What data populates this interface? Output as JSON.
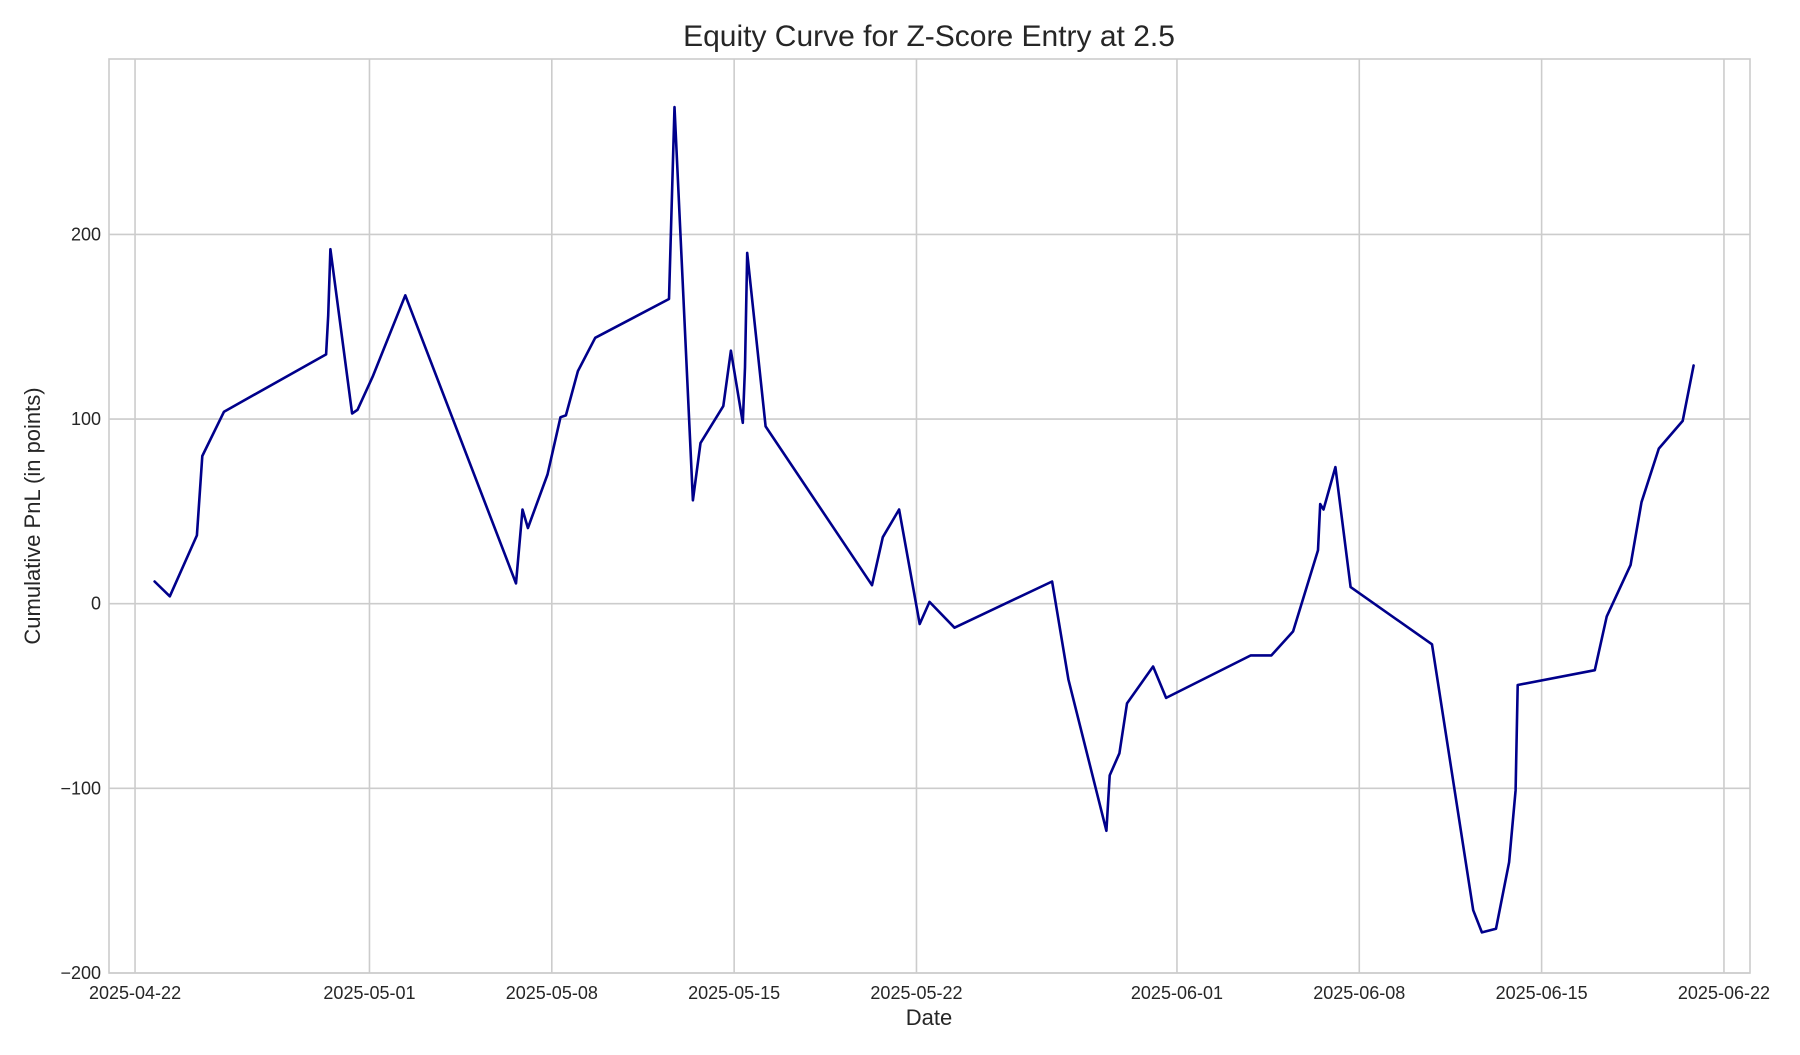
{
  "chart_data": {
    "type": "line",
    "title": "Equity Curve for Z-Score Entry at 2.5",
    "xlabel": "Date",
    "ylabel": "Cumulative PnL (in points)",
    "xlim": [
      "2025-04-21",
      "2025-06-23"
    ],
    "ylim": [
      -200,
      295
    ],
    "x_ticks": [
      "2025-04-22",
      "2025-05-01",
      "2025-05-08",
      "2025-05-15",
      "2025-05-22",
      "2025-06-01",
      "2025-06-08",
      "2025-06-15",
      "2025-06-22"
    ],
    "y_ticks": [
      -200,
      -100,
      0,
      100,
      200
    ],
    "y_tick_labels": [
      "−200",
      "−100",
      "0",
      "100",
      "200"
    ],
    "grid": true,
    "colors": {
      "line": "#00008b",
      "grid": "#cccccc",
      "background": "#ffffff"
    },
    "series": [
      {
        "x": [
          "2025-04-22T18:00",
          "2025-04-23T08:00",
          "2025-04-24T09:00",
          "2025-04-24T14:00",
          "2025-04-25T10:00",
          "2025-04-29T08:00",
          "2025-04-29T10:00",
          "2025-04-29T12:00",
          "2025-04-30T08:00",
          "2025-04-30T13:00",
          "2025-05-01T03:00",
          "2025-05-02T09:00",
          "2025-05-06T15:00",
          "2025-05-06T21:00",
          "2025-05-07T02:00",
          "2025-05-07T20:00",
          "2025-05-08T08:00",
          "2025-05-08T13:00",
          "2025-05-09T00:00",
          "2025-05-09T16:00",
          "2025-05-12T12:00",
          "2025-05-12T17:00",
          "2025-05-13T10:00",
          "2025-05-13T17:00",
          "2025-05-14T14:00",
          "2025-05-14T21:00",
          "2025-05-15T08:00",
          "2025-05-15T10:00",
          "2025-05-15T12:00",
          "2025-05-16T05:00",
          "2025-05-20T07:00",
          "2025-05-20T17:00",
          "2025-05-21T08:00",
          "2025-05-22T03:00",
          "2025-05-22T12:00",
          "2025-05-23T11:00",
          "2025-05-27T05:00",
          "2025-05-27T20:00",
          "2025-05-29T07:00",
          "2025-05-29T10:00",
          "2025-05-29T19:00",
          "2025-05-30T02:00",
          "2025-05-31T02:00",
          "2025-05-31T14:00",
          "2025-06-03T20:00",
          "2025-06-04T15:00",
          "2025-06-05T11:00",
          "2025-06-06T10:00",
          "2025-06-06T12:00",
          "2025-06-06T15:00",
          "2025-06-07T02:00",
          "2025-06-07T16:00",
          "2025-06-10T19:00",
          "2025-06-12T09:00",
          "2025-06-12T17:00",
          "2025-06-13T06:00",
          "2025-06-13T18:00",
          "2025-06-14T00:00",
          "2025-06-14T02:00",
          "2025-06-17T01:00",
          "2025-06-17T12:00",
          "2025-06-18T10:00",
          "2025-06-18T20:00",
          "2025-06-19T12:00",
          "2025-06-20T10:00",
          "2025-06-20T20:00"
        ],
        "y": [
          12,
          4,
          37,
          80,
          104,
          135,
          156,
          192,
          103,
          105,
          123,
          167,
          11,
          51,
          41,
          70,
          101,
          102,
          126,
          144,
          165,
          269,
          56,
          87,
          107,
          137,
          98,
          128,
          190,
          96,
          10,
          36,
          51,
          -11,
          1,
          -13,
          12,
          -41,
          -123,
          -93,
          -81,
          -54,
          -34,
          -51,
          -28,
          -28,
          -15,
          29,
          54,
          51,
          74,
          9,
          -22,
          -166,
          -178,
          -176,
          -140,
          -101,
          -44,
          -36,
          -7,
          21,
          55,
          84,
          99,
          129
        ]
      }
    ]
  }
}
